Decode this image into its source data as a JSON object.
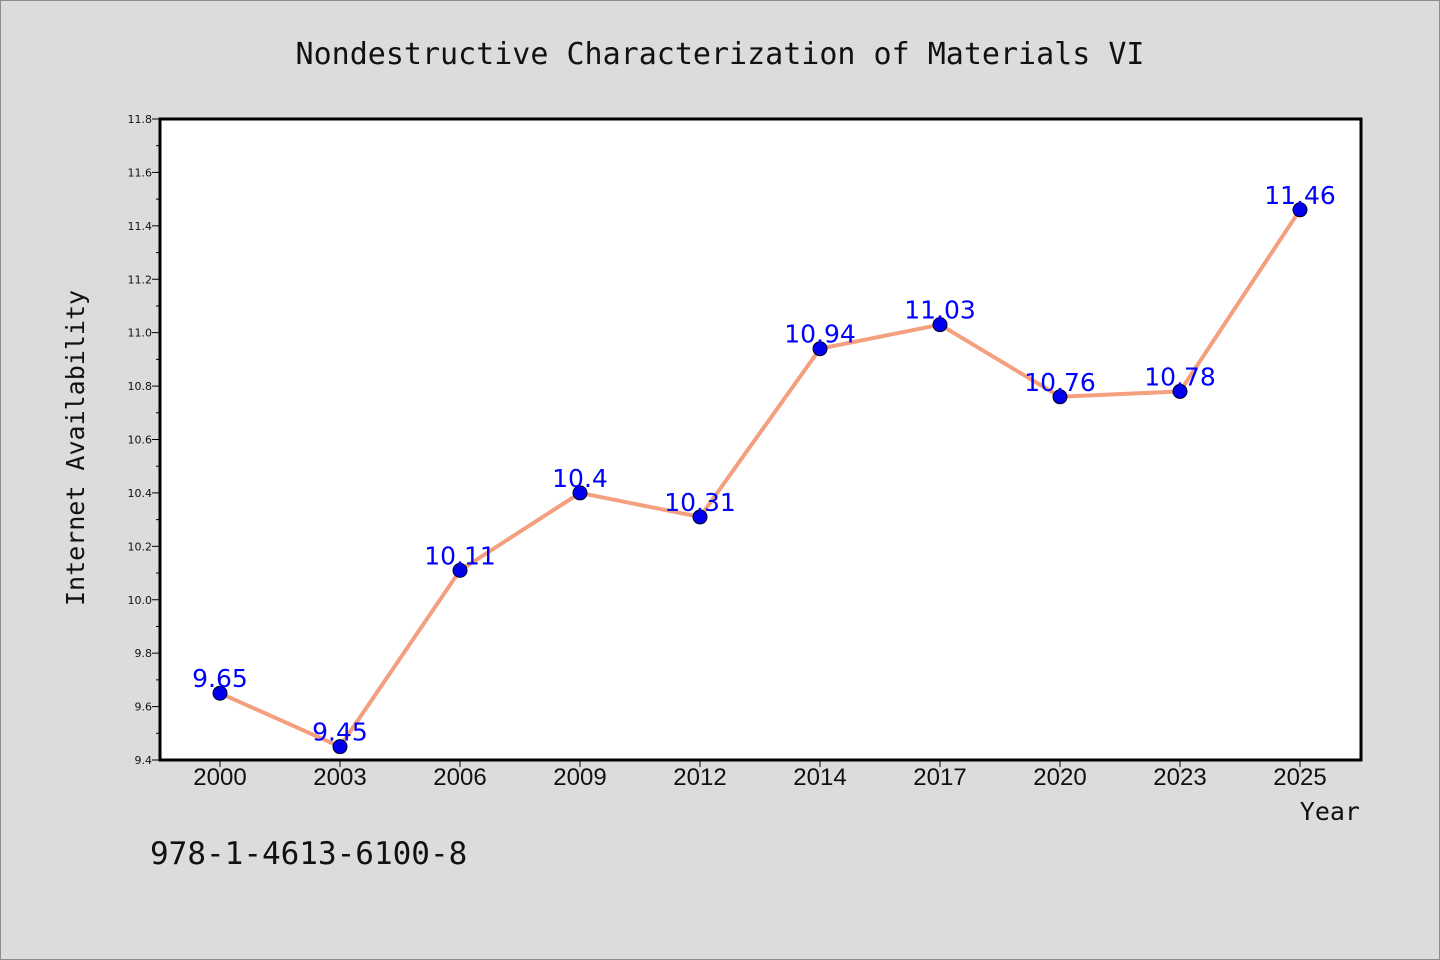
{
  "chart_data": {
    "type": "line",
    "title": "Nondestructive Characterization of Materials VI",
    "xlabel": "Year",
    "ylabel": "Internet Availability",
    "categories": [
      "2000",
      "2003",
      "2006",
      "2009",
      "2012",
      "2014",
      "2017",
      "2020",
      "2023",
      "2025"
    ],
    "series": [
      {
        "values": [
          9.65,
          9.45,
          10.11,
          10.4,
          10.31,
          10.94,
          11.03,
          10.76,
          10.78,
          11.46
        ],
        "labels": [
          "9.65",
          "9.45",
          "10.11",
          "10.4",
          "10.31",
          "10.94",
          "11.03",
          "10.76",
          "10.78",
          "11.46"
        ],
        "line_color": "#f4a07e",
        "marker_color": "#0000ee"
      }
    ],
    "ylim": [
      9.4,
      11.8
    ],
    "yticks": [
      "9.4",
      "9.6",
      "9.8",
      "10.0",
      "10.2",
      "10.4",
      "10.6",
      "10.8",
      "11.0",
      "11.2",
      "11.4",
      "11.6",
      "11.8"
    ],
    "grid": false,
    "legend": "none"
  },
  "footer": {
    "isbn": "978-1-4613-6100-8"
  },
  "colors": {
    "background": "#dcdcdc",
    "plot_area": "#ffffff",
    "label_color": "#0000ff"
  }
}
